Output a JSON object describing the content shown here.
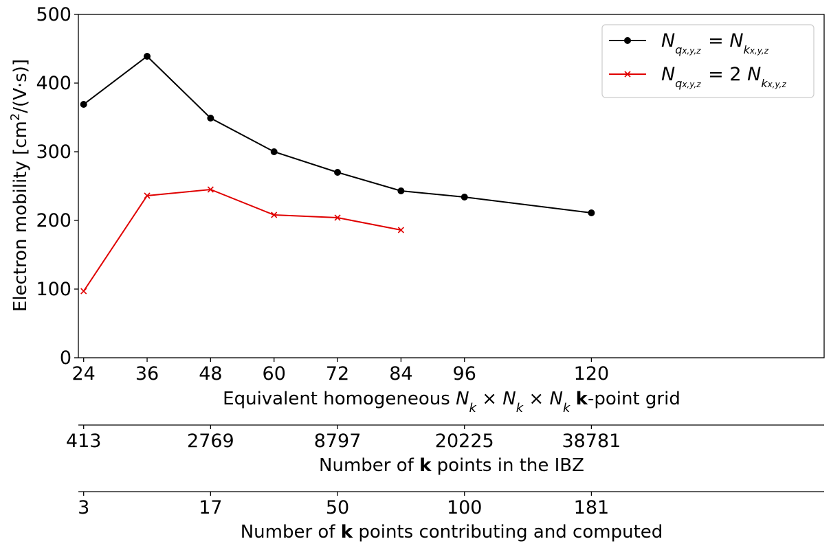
{
  "chart_data": {
    "type": "line",
    "ylabel": "Electron mobility [cm²/(V·s)]",
    "ylim": [
      0,
      500
    ],
    "yticks": [
      0,
      100,
      200,
      300,
      400,
      500
    ],
    "xlim": [
      23,
      164
    ],
    "xticks": [
      24,
      36,
      48,
      60,
      72,
      84,
      96,
      120
    ],
    "xlabel_parts": {
      "prefix": "Equivalent homogeneous ",
      "formula": "N",
      "bold_k": "k",
      "suffix": "-point grid"
    },
    "secondary_axes": [
      {
        "label_prefix": "Number of ",
        "label_bold": "k",
        "label_suffix": " points in the IBZ",
        "ticks": [
          {
            "x": 24,
            "label": "413"
          },
          {
            "x": 48,
            "label": "2769"
          },
          {
            "x": 72,
            "label": "8797"
          },
          {
            "x": 96,
            "label": "20225"
          },
          {
            "x": 120,
            "label": "38781"
          }
        ]
      },
      {
        "label_prefix": "Number of ",
        "label_bold": "k",
        "label_suffix": " points contributing and computed",
        "ticks": [
          {
            "x": 24,
            "label": "3"
          },
          {
            "x": 48,
            "label": "17"
          },
          {
            "x": 72,
            "label": "50"
          },
          {
            "x": 96,
            "label": "100"
          },
          {
            "x": 120,
            "label": "181"
          }
        ]
      }
    ],
    "series": [
      {
        "name": "N_q = N_k",
        "color": "#000000",
        "marker": "circle",
        "x": [
          24,
          36,
          48,
          60,
          72,
          84,
          96,
          120
        ],
        "y": [
          369,
          439,
          349,
          300,
          270,
          243,
          234,
          211
        ]
      },
      {
        "name": "N_q = 2 N_k",
        "color": "#e00000",
        "marker": "x",
        "x": [
          24,
          36,
          48,
          60,
          72,
          84
        ],
        "y": [
          97,
          236,
          245,
          208,
          204,
          186
        ]
      }
    ],
    "legend_position": "top-right",
    "grid": false
  }
}
